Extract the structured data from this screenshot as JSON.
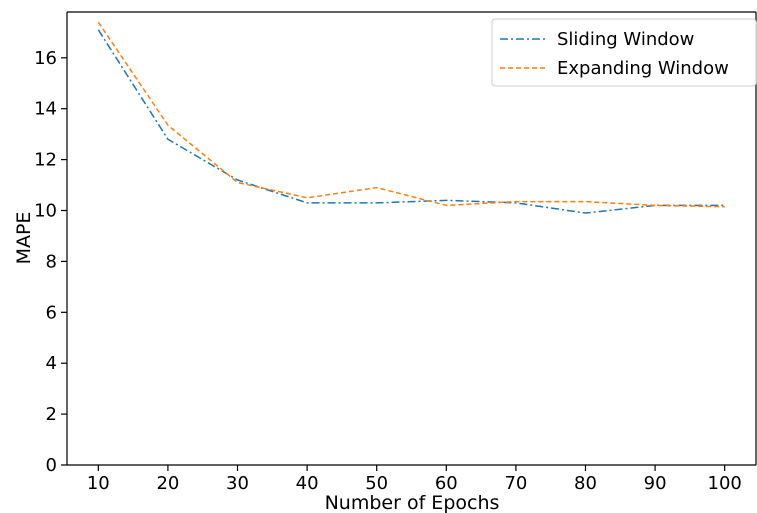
{
  "chart_data": {
    "type": "line",
    "title": "",
    "xlabel": "Number of Epochs",
    "ylabel": "MAPE",
    "x": [
      10,
      20,
      30,
      40,
      50,
      60,
      70,
      80,
      90,
      100
    ],
    "xlim": [
      5.5,
      104.5
    ],
    "ylim": [
      0,
      17.8
    ],
    "xticks": [
      "10",
      "20",
      "30",
      "40",
      "50",
      "60",
      "70",
      "80",
      "90",
      "100"
    ],
    "yticks": [
      "0",
      "2",
      "4",
      "6",
      "8",
      "10",
      "12",
      "14",
      "16"
    ],
    "grid": false,
    "legend_position": "top-right",
    "series": [
      {
        "name": "Sliding Window",
        "color": "#1f77b4",
        "line_style": "dash-dot",
        "values": [
          17.1,
          12.8,
          11.2,
          10.3,
          10.3,
          10.4,
          10.3,
          9.9,
          10.2,
          10.2
        ]
      },
      {
        "name": "Expanding Window",
        "color": "#ff7f0e",
        "line_style": "dashed",
        "values": [
          17.4,
          13.35,
          11.1,
          10.5,
          10.9,
          10.2,
          10.35,
          10.35,
          10.2,
          10.15
        ]
      }
    ]
  }
}
